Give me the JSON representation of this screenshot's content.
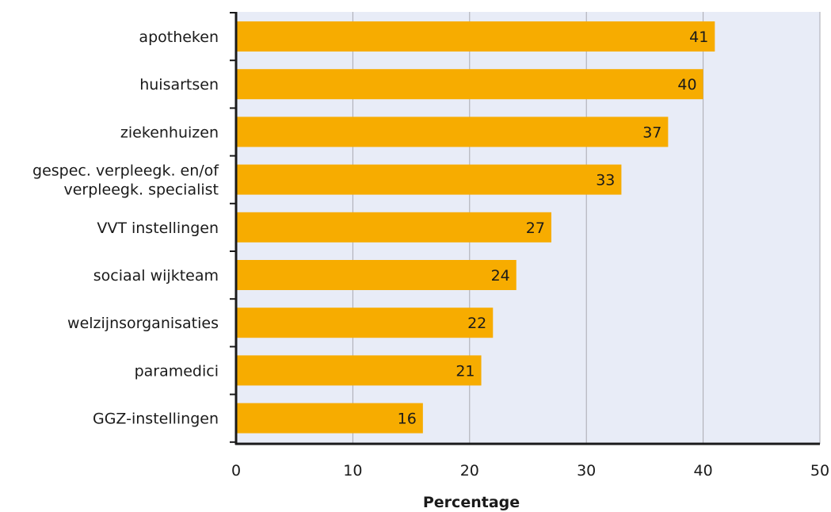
{
  "chart_data": {
    "type": "bar",
    "orientation": "horizontal",
    "categories": [
      "apotheken",
      "huisartsen",
      "ziekenhuizen",
      "gespec. verpleegk. en/of\nverpleegk. specialist",
      "VVT instellingen",
      "sociaal wijkteam",
      "welzijnsorganisaties",
      "paramedici",
      "GGZ-instellingen"
    ],
    "values": [
      41,
      40,
      37,
      33,
      27,
      24,
      22,
      21,
      16
    ],
    "value_labels": [
      "41",
      "40",
      "37",
      "33",
      "27",
      "24",
      "22",
      "21",
      "16"
    ],
    "xticks": [
      0,
      10,
      20,
      30,
      40,
      50
    ],
    "xlim": [
      0,
      50
    ],
    "xlabel": "Percentage",
    "ylabel": "",
    "title": "",
    "grid": true,
    "colors": {
      "bar": "#f7ac00",
      "plot_background": "#e8ecf7",
      "gridline": "#a9a9b0",
      "axis": "#1a1a1a",
      "text": "#1a1a1a"
    }
  }
}
